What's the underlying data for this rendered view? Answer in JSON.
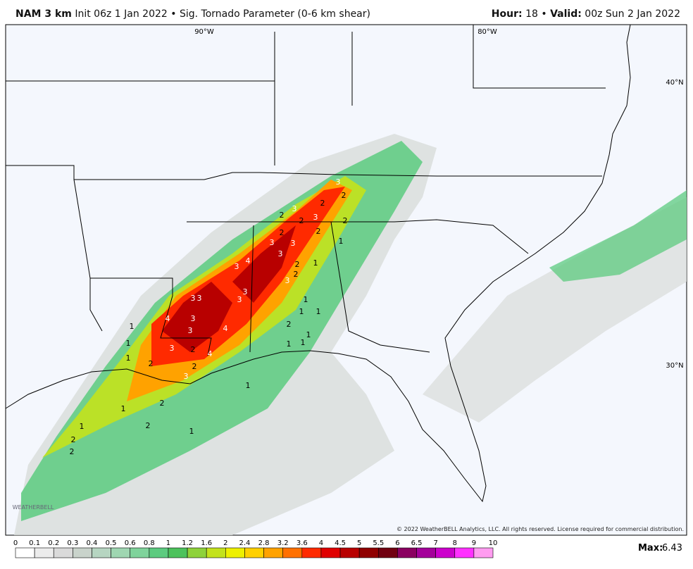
{
  "header": {
    "model": "NAM 3 km",
    "init": "Init 06z 1 Jan 2022",
    "separator": "•",
    "product": "Sig. Tornado Parameter (0-6 km shear)",
    "hour_label": "Hour",
    "hour": "18",
    "valid_label": "Valid",
    "valid": "00z Sun 2 Jan 2022"
  },
  "map": {
    "graticule_labels": [
      "90°W",
      "80°W",
      "40°N",
      "30°N"
    ],
    "contour_labels": [
      3,
      2,
      2,
      3,
      2,
      3,
      2,
      2,
      2,
      2,
      1,
      3,
      3,
      3,
      4,
      3,
      2,
      1,
      2,
      3,
      3,
      3,
      3,
      3,
      1,
      1,
      1,
      4,
      3,
      2,
      1,
      3,
      4,
      1,
      1,
      1,
      1,
      3,
      2,
      4,
      1,
      2,
      2,
      3,
      1,
      2,
      1,
      2,
      1,
      1,
      2,
      2
    ],
    "copyright": "© 2022 WeatherBELL Analytics, LLC. All rights reserved. License required for commercial distribution.",
    "logo": "WEATHERBELL"
  },
  "legend": {
    "ticks": [
      0,
      0.1,
      0.2,
      0.3,
      0.4,
      0.5,
      0.6,
      0.8,
      1,
      1.2,
      1.6,
      2,
      2.4,
      2.8,
      3.2,
      3.6,
      4,
      4.5,
      5,
      5.5,
      6,
      6.5,
      7,
      8,
      9,
      10
    ],
    "colors": [
      "#ffffff",
      "#ececec",
      "#dadada",
      "#c9d3cb",
      "#b6d5c1",
      "#9fd6b1",
      "#7fd39b",
      "#5ccb7f",
      "#4cc25c",
      "#8ed23a",
      "#c3e21c",
      "#eef000",
      "#ffd000",
      "#ffa200",
      "#ff7000",
      "#ff2a00",
      "#e00000",
      "#b80000",
      "#900000",
      "#700010",
      "#8a0060",
      "#a4009a",
      "#cc00cc",
      "#ff30ff",
      "#ff9cf0"
    ],
    "max_label": "Max",
    "max": 6.43
  }
}
